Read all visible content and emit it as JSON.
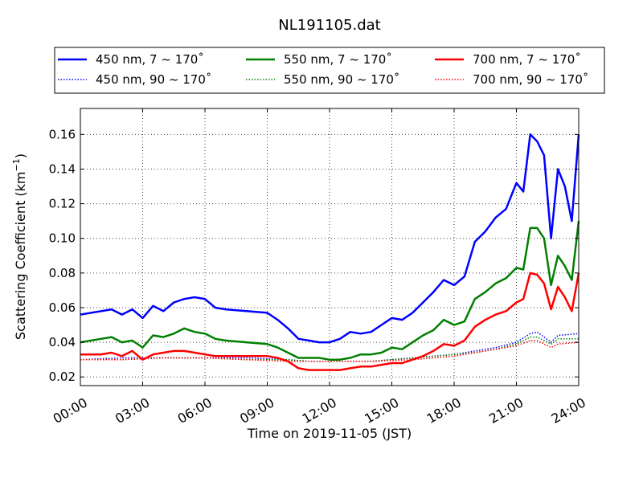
{
  "chart_data": {
    "type": "line",
    "title": "NL191105.dat",
    "xlabel": "Time on 2019-11-05 (JST)",
    "ylabel_main": "Scattering Coefficient (km",
    "ylabel_sup": "−1",
    "ylabel_end": ")",
    "xlim": [
      "00:00",
      "24:00"
    ],
    "ylim": [
      0.015,
      0.175
    ],
    "grid": true,
    "legend_placement": "top, above plot, 3 columns",
    "x_ticks": [
      "00:00",
      "03:00",
      "06:00",
      "09:00",
      "12:00",
      "15:00",
      "18:00",
      "21:00",
      "24:00"
    ],
    "y_ticks": [
      "0.02",
      "0.04",
      "0.06",
      "0.08",
      "0.10",
      "0.12",
      "0.14",
      "0.16"
    ],
    "series": [
      {
        "name": "450 nm, 7 ~ 170˚",
        "color": "#0000ff",
        "style": "solid",
        "x": [
          "00:00",
          "01:00",
          "01:30",
          "02:00",
          "02:30",
          "03:00",
          "03:30",
          "04:00",
          "04:30",
          "05:00",
          "05:30",
          "06:00",
          "06:30",
          "07:00",
          "08:00",
          "09:00",
          "09:30",
          "10:00",
          "10:30",
          "11:00",
          "11:30",
          "12:00",
          "12:30",
          "13:00",
          "13:30",
          "14:00",
          "14:30",
          "15:00",
          "15:30",
          "16:00",
          "16:30",
          "17:00",
          "17:30",
          "18:00",
          "18:30",
          "19:00",
          "19:30",
          "20:00",
          "20:30",
          "21:00",
          "21:20",
          "21:40",
          "22:00",
          "22:20",
          "22:40",
          "23:00",
          "23:20",
          "23:40",
          "24:00"
        ],
        "y": [
          0.056,
          0.058,
          0.059,
          0.056,
          0.059,
          0.054,
          0.061,
          0.058,
          0.063,
          0.065,
          0.066,
          0.065,
          0.06,
          0.059,
          0.058,
          0.057,
          0.053,
          0.048,
          0.042,
          0.041,
          0.04,
          0.04,
          0.042,
          0.046,
          0.045,
          0.046,
          0.05,
          0.054,
          0.053,
          0.057,
          0.063,
          0.069,
          0.076,
          0.073,
          0.078,
          0.098,
          0.104,
          0.112,
          0.117,
          0.132,
          0.127,
          0.16,
          0.156,
          0.148,
          0.1,
          0.14,
          0.13,
          0.11,
          0.16
        ]
      },
      {
        "name": "550 nm, 7 ~ 170˚",
        "color": "#008000",
        "style": "solid",
        "x": [
          "00:00",
          "01:00",
          "01:30",
          "02:00",
          "02:30",
          "03:00",
          "03:30",
          "04:00",
          "04:30",
          "05:00",
          "05:30",
          "06:00",
          "06:30",
          "07:00",
          "08:00",
          "09:00",
          "09:30",
          "10:00",
          "10:30",
          "11:00",
          "11:30",
          "12:00",
          "12:30",
          "13:00",
          "13:30",
          "14:00",
          "14:30",
          "15:00",
          "15:30",
          "16:00",
          "16:30",
          "17:00",
          "17:30",
          "18:00",
          "18:30",
          "19:00",
          "19:30",
          "20:00",
          "20:30",
          "21:00",
          "21:20",
          "21:40",
          "22:00",
          "22:20",
          "22:40",
          "23:00",
          "23:20",
          "23:40",
          "24:00"
        ],
        "y": [
          0.04,
          0.042,
          0.043,
          0.04,
          0.041,
          0.037,
          0.044,
          0.043,
          0.045,
          0.048,
          0.046,
          0.045,
          0.042,
          0.041,
          0.04,
          0.039,
          0.037,
          0.034,
          0.031,
          0.031,
          0.031,
          0.03,
          0.03,
          0.031,
          0.033,
          0.033,
          0.034,
          0.037,
          0.036,
          0.04,
          0.044,
          0.047,
          0.053,
          0.05,
          0.052,
          0.065,
          0.069,
          0.074,
          0.077,
          0.083,
          0.082,
          0.106,
          0.106,
          0.1,
          0.073,
          0.09,
          0.084,
          0.076,
          0.11
        ]
      },
      {
        "name": "700 nm, 7 ~ 170˚",
        "color": "#ff0000",
        "style": "solid",
        "x": [
          "00:00",
          "01:00",
          "01:30",
          "02:00",
          "02:30",
          "03:00",
          "03:30",
          "04:00",
          "04:30",
          "05:00",
          "05:30",
          "06:00",
          "06:30",
          "07:00",
          "08:00",
          "09:00",
          "09:30",
          "10:00",
          "10:30",
          "11:00",
          "11:30",
          "12:00",
          "12:30",
          "13:00",
          "13:30",
          "14:00",
          "14:30",
          "15:00",
          "15:30",
          "16:00",
          "16:30",
          "17:00",
          "17:30",
          "18:00",
          "18:30",
          "19:00",
          "19:30",
          "20:00",
          "20:30",
          "21:00",
          "21:20",
          "21:40",
          "22:00",
          "22:20",
          "22:40",
          "23:00",
          "23:20",
          "23:40",
          "24:00"
        ],
        "y": [
          0.033,
          0.033,
          0.034,
          0.032,
          0.035,
          0.03,
          0.033,
          0.034,
          0.035,
          0.035,
          0.034,
          0.033,
          0.032,
          0.032,
          0.032,
          0.032,
          0.031,
          0.029,
          0.025,
          0.024,
          0.024,
          0.024,
          0.024,
          0.025,
          0.026,
          0.026,
          0.027,
          0.028,
          0.028,
          0.03,
          0.032,
          0.035,
          0.039,
          0.038,
          0.041,
          0.049,
          0.053,
          0.056,
          0.058,
          0.063,
          0.065,
          0.08,
          0.079,
          0.074,
          0.059,
          0.072,
          0.066,
          0.058,
          0.08
        ]
      },
      {
        "name": "450 nm, 90 ~ 170˚",
        "color": "#0000ff",
        "style": "dotted",
        "x": [
          "00:00",
          "02:00",
          "04:00",
          "06:00",
          "08:00",
          "10:00",
          "11:00",
          "12:00",
          "14:00",
          "16:00",
          "18:00",
          "19:00",
          "20:00",
          "21:00",
          "21:40",
          "22:00",
          "22:40",
          "23:00",
          "24:00"
        ],
        "y": [
          0.03,
          0.031,
          0.031,
          0.031,
          0.031,
          0.03,
          0.029,
          0.029,
          0.029,
          0.031,
          0.033,
          0.035,
          0.037,
          0.04,
          0.045,
          0.046,
          0.04,
          0.044,
          0.045
        ]
      },
      {
        "name": "550 nm, 90 ~ 170˚",
        "color": "#008000",
        "style": "dotted",
        "x": [
          "00:00",
          "02:00",
          "04:00",
          "06:00",
          "08:00",
          "10:00",
          "11:00",
          "12:00",
          "14:00",
          "16:00",
          "18:00",
          "19:00",
          "20:00",
          "21:00",
          "21:40",
          "22:00",
          "22:40",
          "23:00",
          "24:00"
        ],
        "y": [
          0.03,
          0.03,
          0.031,
          0.031,
          0.03,
          0.03,
          0.029,
          0.029,
          0.029,
          0.031,
          0.033,
          0.034,
          0.036,
          0.039,
          0.043,
          0.043,
          0.039,
          0.042,
          0.042
        ]
      },
      {
        "name": "700 nm, 90 ~ 170˚",
        "color": "#ff0000",
        "style": "dotted",
        "x": [
          "00:00",
          "02:00",
          "04:00",
          "06:00",
          "08:00",
          "10:00",
          "11:00",
          "12:00",
          "14:00",
          "16:00",
          "18:00",
          "19:00",
          "20:00",
          "21:00",
          "21:40",
          "22:00",
          "22:40",
          "23:00",
          "24:00"
        ],
        "y": [
          0.03,
          0.03,
          0.031,
          0.031,
          0.03,
          0.029,
          0.029,
          0.029,
          0.029,
          0.03,
          0.032,
          0.034,
          0.036,
          0.038,
          0.041,
          0.041,
          0.037,
          0.039,
          0.04
        ]
      }
    ],
    "legend": [
      {
        "label": "450 nm, 7 ~ 170˚",
        "color": "#0000ff",
        "style": "solid"
      },
      {
        "label": "550 nm, 7 ~ 170˚",
        "color": "#008000",
        "style": "solid"
      },
      {
        "label": "700 nm, 7 ~ 170˚",
        "color": "#ff0000",
        "style": "solid"
      },
      {
        "label": "450 nm, 90 ~ 170˚",
        "color": "#0000ff",
        "style": "dotted"
      },
      {
        "label": "550 nm, 90 ~ 170˚",
        "color": "#008000",
        "style": "dotted"
      },
      {
        "label": "700 nm, 90 ~ 170˚",
        "color": "#ff0000",
        "style": "dotted"
      }
    ]
  }
}
